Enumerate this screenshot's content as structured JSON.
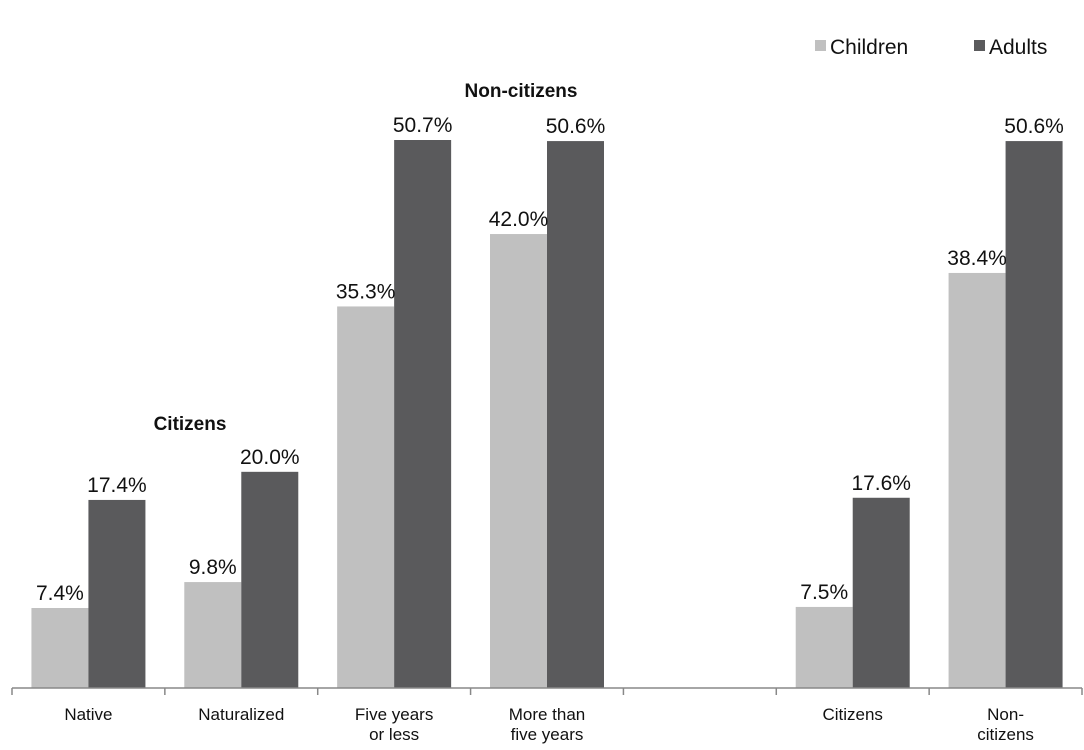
{
  "chart_data": {
    "type": "bar",
    "categories": [
      [
        "Native"
      ],
      [
        "Naturalized"
      ],
      [
        "Five years",
        "or less"
      ],
      [
        "More than",
        "five years"
      ],
      [
        ""
      ],
      [
        "Citizens"
      ],
      [
        "Non-",
        "citizens"
      ]
    ],
    "series": [
      {
        "name": "Children",
        "color": "#c0c0c0",
        "values": [
          7.4,
          9.8,
          35.3,
          42.0,
          null,
          7.5,
          38.4
        ]
      },
      {
        "name": "Adults",
        "color": "#5a5a5c",
        "values": [
          17.4,
          20.0,
          50.7,
          50.6,
          null,
          17.6,
          50.6
        ]
      }
    ],
    "data_labels": [
      [
        "7.4%",
        "9.8%",
        "35.3%",
        "42.0%",
        "",
        "7.5%",
        "38.4%"
      ],
      [
        "17.4%",
        "20.0%",
        "50.7%",
        "50.6%",
        "",
        "17.6%",
        "50.6%"
      ]
    ],
    "group_labels": {
      "citizens": "Citizens",
      "non_citizens": "Non-citizens"
    },
    "legend_position": "top-right",
    "ylim": [
      0,
      50.7
    ],
    "grid": false
  }
}
